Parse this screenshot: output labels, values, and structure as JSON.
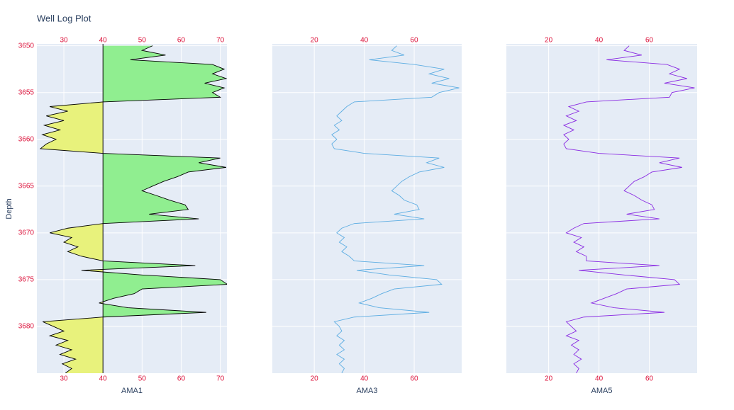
{
  "chart_data": [
    {
      "type": "line",
      "title": "Well Log Plot",
      "ylabel": "Depth",
      "xlabel": "AMA1",
      "y": [
        3650,
        3650.5,
        3651,
        3651.5,
        3652,
        3652.5,
        3653,
        3653.5,
        3654,
        3654.5,
        3655,
        3655.5,
        3656,
        3656.5,
        3657,
        3657.5,
        3658,
        3658.5,
        3659,
        3659.5,
        3660,
        3660.5,
        3661,
        3661.5,
        3662,
        3662.5,
        3663,
        3663.5,
        3664,
        3664.5,
        3665,
        3665.5,
        3666,
        3666.5,
        3667,
        3667.5,
        3668,
        3668.5,
        3669,
        3669.5,
        3670,
        3670.5,
        3671,
        3671.5,
        3672,
        3672.5,
        3673,
        3673.5,
        3674,
        3674.5,
        3675,
        3675.5,
        3676,
        3676.5,
        3677,
        3677.5,
        3678,
        3678.5,
        3679,
        3679.5,
        3680,
        3680.5,
        3681,
        3681.5,
        3682,
        3682.5,
        3683,
        3683.5,
        3684,
        3684.5,
        3685
      ],
      "series": [
        {
          "color": "#000000",
          "values": [
            52.7,
            50,
            56,
            47,
            68,
            71,
            68,
            71.5,
            66,
            71,
            68,
            70,
            40,
            26.4,
            31,
            25.5,
            30,
            25,
            29,
            24.5,
            28,
            25.5,
            24,
            40,
            70,
            64.5,
            71.5,
            61.8,
            59,
            55.5,
            52.7,
            50,
            53.6,
            57,
            61,
            61.8,
            51.8,
            64.5,
            40,
            31,
            26.4,
            32,
            30,
            33.6,
            31,
            34.5,
            40,
            63.6,
            34.5,
            50,
            70,
            71.8,
            50,
            48,
            42.7,
            39,
            46.4,
            66.4,
            40,
            24.6,
            27.3,
            30,
            26.4,
            31,
            28,
            32,
            29,
            33,
            29.6,
            32,
            30.4
          ]
        }
      ],
      "fill_threshold": 40,
      "fill_colors": {
        "above": "#90ee90",
        "below": "#e8f27c"
      },
      "xlim": [
        23.1,
        71.7
      ],
      "xticks": [
        30,
        40,
        50,
        60,
        70
      ],
      "ylim": [
        3685,
        3649.8
      ],
      "yticks": [
        3650,
        3655,
        3660,
        3665,
        3670,
        3675,
        3680
      ],
      "ytick_labels": true
    },
    {
      "type": "line",
      "xlabel": "AMA3",
      "y": [
        3650,
        3650.5,
        3651,
        3651.5,
        3652,
        3652.5,
        3653,
        3653.5,
        3654,
        3654.5,
        3655,
        3655.5,
        3656,
        3656.5,
        3657,
        3657.5,
        3658,
        3658.5,
        3659,
        3659.5,
        3660,
        3660.5,
        3661,
        3661.5,
        3662,
        3662.5,
        3663,
        3663.5,
        3664,
        3664.5,
        3665,
        3665.5,
        3666,
        3666.5,
        3667,
        3667.5,
        3668,
        3668.5,
        3669,
        3669.5,
        3670,
        3670.5,
        3671,
        3671.5,
        3672,
        3672.5,
        3673,
        3673.5,
        3674,
        3674.5,
        3675,
        3675.5,
        3676,
        3676.5,
        3677,
        3677.5,
        3678,
        3678.5,
        3679,
        3679.5,
        3680,
        3680.5,
        3681,
        3681.5,
        3682,
        3682.5,
        3683,
        3683.5,
        3684,
        3684.5,
        3685
      ],
      "series": [
        {
          "color": "#5dade2",
          "values": [
            53,
            51,
            56,
            42,
            60,
            72,
            66,
            74,
            67,
            78,
            70,
            67,
            36,
            33,
            31,
            29,
            31,
            28,
            30,
            27,
            29,
            27,
            28,
            40,
            70,
            65,
            72,
            62,
            58,
            55,
            53,
            51,
            54,
            56,
            61,
            62,
            52,
            64,
            36,
            31,
            29,
            32,
            30,
            33,
            31,
            34,
            36,
            64,
            37,
            50,
            69,
            71,
            52,
            47,
            43,
            38,
            46,
            66,
            36,
            28,
            30,
            31,
            29,
            32,
            30,
            32,
            29,
            32,
            30,
            32,
            31
          ]
        }
      ],
      "xlim": [
        3.2,
        79
      ],
      "xticks": [
        20,
        40,
        60
      ],
      "ylim": [
        3685,
        3649.8
      ],
      "yticks": [
        3650,
        3655,
        3660,
        3665,
        3670,
        3675,
        3680
      ],
      "ytick_labels": false
    },
    {
      "type": "line",
      "xlabel": "AMA5",
      "y": [
        3650,
        3650.5,
        3651,
        3651.5,
        3652,
        3652.5,
        3653,
        3653.5,
        3654,
        3654.5,
        3655,
        3655.5,
        3656,
        3656.5,
        3657,
        3657.5,
        3658,
        3658.5,
        3659,
        3659.5,
        3660,
        3660.5,
        3661,
        3661.5,
        3662,
        3662.5,
        3663,
        3663.5,
        3664,
        3664.5,
        3665,
        3665.5,
        3666,
        3666.5,
        3667,
        3667.5,
        3668,
        3668.5,
        3669,
        3669.5,
        3670,
        3670.5,
        3671,
        3671.5,
        3672,
        3672.5,
        3673,
        3673.5,
        3674,
        3674.5,
        3675,
        3675.5,
        3676,
        3676.5,
        3677,
        3677.5,
        3678,
        3678.5,
        3679,
        3679.5,
        3680,
        3680.5,
        3681,
        3681.5,
        3682,
        3682.5,
        3683,
        3683.5,
        3684,
        3684.5,
        3685
      ],
      "series": [
        {
          "color": "#8a2be2",
          "values": [
            52,
            50,
            57,
            43,
            67,
            72,
            68,
            75,
            66,
            78,
            69,
            68,
            35,
            28,
            32,
            27,
            31,
            26,
            30,
            26,
            28,
            26,
            27,
            40,
            72,
            64,
            73,
            61,
            58,
            54,
            52,
            50,
            54,
            57,
            61,
            62,
            51,
            64,
            34,
            30,
            27,
            33,
            30,
            34,
            31,
            35,
            35,
            64,
            32,
            50,
            70,
            72,
            51,
            47,
            42,
            37,
            46,
            66,
            34,
            27,
            29,
            31,
            27,
            32,
            29,
            32,
            30,
            33,
            30,
            32,
            31
          ]
        }
      ],
      "xlim": [
        3.2,
        79
      ],
      "xticks": [
        20,
        40,
        60
      ],
      "ylim": [
        3685,
        3649.8
      ],
      "yticks": [
        3650,
        3655,
        3660,
        3665,
        3670,
        3675,
        3680
      ],
      "ytick_labels": false
    }
  ]
}
